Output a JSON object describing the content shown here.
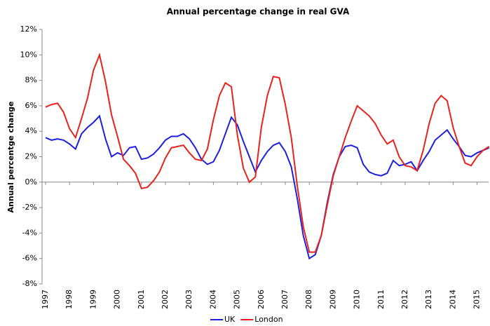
{
  "chart_data": {
    "type": "line",
    "title": "Annual percentage change in real GVA",
    "ylabel": "Annual percentge change",
    "categories": [
      "1997",
      null,
      null,
      null,
      "1998",
      null,
      null,
      null,
      "1999",
      null,
      null,
      null,
      "2000",
      null,
      null,
      null,
      "2001",
      null,
      null,
      null,
      "2002",
      null,
      null,
      null,
      "2003",
      null,
      null,
      null,
      "2004",
      null,
      null,
      null,
      "2005",
      null,
      null,
      null,
      "2006",
      null,
      null,
      null,
      "2007",
      null,
      null,
      null,
      "2008",
      null,
      null,
      null,
      "2009",
      null,
      null,
      null,
      "2010",
      null,
      null,
      null,
      "2011",
      null,
      null,
      null,
      "2012",
      null,
      null,
      null,
      "2013",
      null,
      null,
      null,
      "2014",
      null,
      null,
      null,
      "2015",
      null,
      null
    ],
    "series": [
      {
        "name": "UK",
        "color": "#1f1fe0",
        "values": [
          3.5,
          3.3,
          3.4,
          3.3,
          3.0,
          2.6,
          3.8,
          4.3,
          4.7,
          5.2,
          3.4,
          2.0,
          2.3,
          2.1,
          2.7,
          2.8,
          1.8,
          1.9,
          2.2,
          2.7,
          3.3,
          3.6,
          3.6,
          3.8,
          3.4,
          2.7,
          1.8,
          1.4,
          1.6,
          2.5,
          3.8,
          5.1,
          4.5,
          3.2,
          2.0,
          0.8,
          1.7,
          2.4,
          2.9,
          3.1,
          2.4,
          1.2,
          -1.3,
          -4.2,
          -6.0,
          -5.7,
          -4.2,
          -1.6,
          0.6,
          2.0,
          2.8,
          2.9,
          2.7,
          1.4,
          0.8,
          0.6,
          0.5,
          0.7,
          1.7,
          1.3,
          1.4,
          1.6,
          0.9,
          1.7,
          2.4,
          3.3,
          3.7,
          4.1,
          3.4,
          2.8,
          2.1,
          2.0,
          2.3,
          2.5,
          2.7
        ]
      },
      {
        "name": "London",
        "color": "#e8221c",
        "values": [
          5.9,
          6.1,
          6.2,
          5.5,
          4.2,
          3.5,
          5.0,
          6.6,
          8.8,
          10.0,
          7.9,
          5.3,
          3.6,
          1.8,
          1.3,
          0.7,
          -0.5,
          -0.4,
          0.1,
          0.8,
          1.9,
          2.7,
          2.8,
          2.9,
          2.3,
          1.8,
          1.7,
          2.6,
          4.9,
          6.8,
          7.8,
          7.5,
          3.7,
          1.1,
          0.0,
          0.4,
          4.3,
          6.8,
          8.3,
          8.2,
          6.1,
          3.5,
          -0.3,
          -3.5,
          -5.5,
          -5.5,
          -4.2,
          -1.8,
          0.5,
          2.0,
          3.5,
          4.8,
          6.0,
          5.6,
          5.2,
          4.6,
          3.7,
          3.0,
          3.3,
          2.0,
          1.3,
          1.2,
          0.9,
          2.5,
          4.6,
          6.2,
          6.8,
          6.4,
          4.3,
          2.8,
          1.5,
          1.3,
          2.0,
          2.5,
          2.8
        ]
      }
    ],
    "ylim": [
      -8,
      12
    ],
    "yticks": [
      {
        "value": -8,
        "label": "-8%"
      },
      {
        "value": -6,
        "label": "-6%"
      },
      {
        "value": -4,
        "label": "-4%"
      },
      {
        "value": -2,
        "label": "-2%"
      },
      {
        "value": 0,
        "label": "0%"
      },
      {
        "value": 2,
        "label": "2%"
      },
      {
        "value": 4,
        "label": "4%"
      },
      {
        "value": 6,
        "label": "6%"
      },
      {
        "value": 8,
        "label": "8%"
      },
      {
        "value": 10,
        "label": "10%"
      },
      {
        "value": 12,
        "label": "12%"
      }
    ]
  }
}
